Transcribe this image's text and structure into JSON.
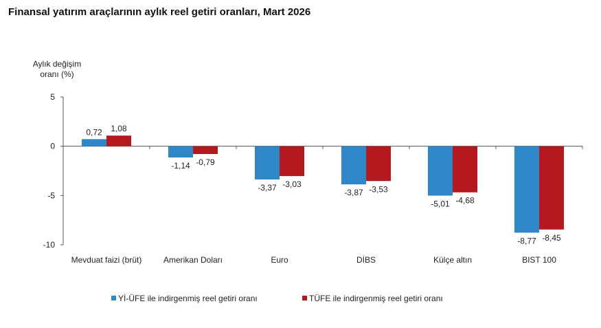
{
  "chart_data": {
    "type": "bar",
    "title": "Finansal yatırım araçlarının aylık reel getiri oranları, Mart 2026",
    "ylabel_lines": [
      "Aylık değişim",
      "oranı (%)"
    ],
    "xlabel": "",
    "ylim": [
      -10,
      5
    ],
    "yticks": [
      5,
      0,
      -5,
      -10
    ],
    "ytick_labels": [
      "5",
      "0",
      "-5",
      "-10"
    ],
    "grid": false,
    "legend_position": "bottom",
    "categories": [
      "Mevduat faizi (brüt)",
      "Amerikan Doları",
      "Euro",
      "DİBS",
      "Külçe altın",
      "BIST 100"
    ],
    "series": [
      {
        "name": "Yİ-ÜFE ile indirgenmiş reel getiri oranı",
        "color": "#2F87C8",
        "values": [
          0.72,
          -1.14,
          -3.37,
          -3.87,
          -5.01,
          -8.77
        ],
        "labels": [
          "0,72",
          "-1,14",
          "-3,37",
          "-3,87",
          "-5,01",
          "-8,77"
        ]
      },
      {
        "name": "TÜFE ile indirgenmiş reel getiri oranı",
        "color": "#B3191F",
        "values": [
          1.08,
          -0.79,
          -3.03,
          -3.53,
          -4.68,
          -8.45
        ],
        "labels": [
          "1,08",
          "-0,79",
          "-3,03",
          "-3,53",
          "-4,68",
          "-8,45"
        ]
      }
    ]
  }
}
